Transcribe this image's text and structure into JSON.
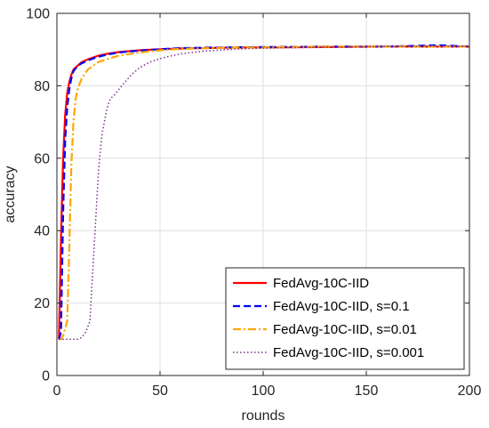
{
  "chart_data": {
    "type": "line",
    "title": "",
    "xlabel": "rounds",
    "ylabel": "accuracy",
    "xlim": [
      0,
      200
    ],
    "ylim": [
      0,
      100
    ],
    "xticks": [
      0,
      50,
      100,
      150,
      200
    ],
    "yticks": [
      0,
      20,
      40,
      60,
      80,
      100
    ],
    "grid": true,
    "legend_position": "bottom-right",
    "series": [
      {
        "name": "FedAvg-10C-IID",
        "color": "#ff0000",
        "style": "solid",
        "points": [
          [
            1,
            10
          ],
          [
            2,
            38
          ],
          [
            3,
            60
          ],
          [
            4,
            72
          ],
          [
            5,
            78
          ],
          [
            6,
            81
          ],
          [
            7,
            83
          ],
          [
            8,
            84.5
          ],
          [
            10,
            85.5
          ],
          [
            12,
            86.5
          ],
          [
            15,
            87.3
          ],
          [
            20,
            88.3
          ],
          [
            25,
            88.9
          ],
          [
            30,
            89.3
          ],
          [
            40,
            89.8
          ],
          [
            50,
            90.1
          ],
          [
            60,
            90.3
          ],
          [
            80,
            90.5
          ],
          [
            100,
            90.6
          ],
          [
            130,
            90.7
          ],
          [
            160,
            90.8
          ],
          [
            200,
            90.8
          ]
        ]
      },
      {
        "name": "FedAvg-10C-IID, s=0.1",
        "color": "#0000ff",
        "style": "dashed",
        "points": [
          [
            1,
            10
          ],
          [
            2,
            12
          ],
          [
            3,
            45
          ],
          [
            4,
            65
          ],
          [
            5,
            74
          ],
          [
            6,
            79
          ],
          [
            7,
            82
          ],
          [
            8,
            84
          ],
          [
            10,
            85.5
          ],
          [
            12,
            86.2
          ],
          [
            15,
            87
          ],
          [
            20,
            88
          ],
          [
            25,
            88.7
          ],
          [
            30,
            89.2
          ],
          [
            40,
            89.7
          ],
          [
            50,
            90.1
          ],
          [
            60,
            90.4
          ],
          [
            80,
            90.6
          ],
          [
            100,
            90.7
          ],
          [
            130,
            90.8
          ],
          [
            160,
            90.8
          ],
          [
            185,
            91.2
          ],
          [
            200,
            90.8
          ]
        ]
      },
      {
        "name": "FedAvg-10C-IID, s=0.01",
        "color": "#ffa500",
        "style": "dashdot",
        "points": [
          [
            1,
            10
          ],
          [
            2,
            10
          ],
          [
            3,
            11
          ],
          [
            4,
            13
          ],
          [
            5,
            15
          ],
          [
            6,
            35
          ],
          [
            7,
            58
          ],
          [
            8,
            70
          ],
          [
            9,
            76
          ],
          [
            10,
            79
          ],
          [
            12,
            82
          ],
          [
            15,
            84.5
          ],
          [
            20,
            86.5
          ],
          [
            25,
            87.5
          ],
          [
            30,
            88.3
          ],
          [
            40,
            89.2
          ],
          [
            50,
            89.8
          ],
          [
            60,
            90.2
          ],
          [
            80,
            90.5
          ],
          [
            100,
            90.6
          ],
          [
            130,
            90.8
          ],
          [
            160,
            90.8
          ],
          [
            200,
            90.8
          ]
        ]
      },
      {
        "name": "FedAvg-10C-IID, s=0.001",
        "color": "#7e2f8e",
        "style": "dotted",
        "points": [
          [
            1,
            10
          ],
          [
            5,
            10
          ],
          [
            10,
            10
          ],
          [
            12,
            10.5
          ],
          [
            14,
            12
          ],
          [
            16,
            15
          ],
          [
            17,
            25
          ],
          [
            18,
            35
          ],
          [
            19,
            45
          ],
          [
            20,
            55
          ],
          [
            21,
            62
          ],
          [
            22,
            67
          ],
          [
            23,
            70
          ],
          [
            24,
            73
          ],
          [
            25,
            75
          ],
          [
            26,
            76.5
          ],
          [
            28,
            77.5
          ],
          [
            30,
            79
          ],
          [
            33,
            81
          ],
          [
            36,
            83
          ],
          [
            40,
            85
          ],
          [
            45,
            86.5
          ],
          [
            50,
            87.5
          ],
          [
            55,
            88.2
          ],
          [
            60,
            88.8
          ],
          [
            70,
            89.5
          ],
          [
            80,
            89.9
          ],
          [
            90,
            90.2
          ],
          [
            100,
            90.4
          ],
          [
            120,
            90.6
          ],
          [
            150,
            90.8
          ],
          [
            180,
            90.9
          ],
          [
            200,
            90.9
          ]
        ]
      }
    ]
  }
}
